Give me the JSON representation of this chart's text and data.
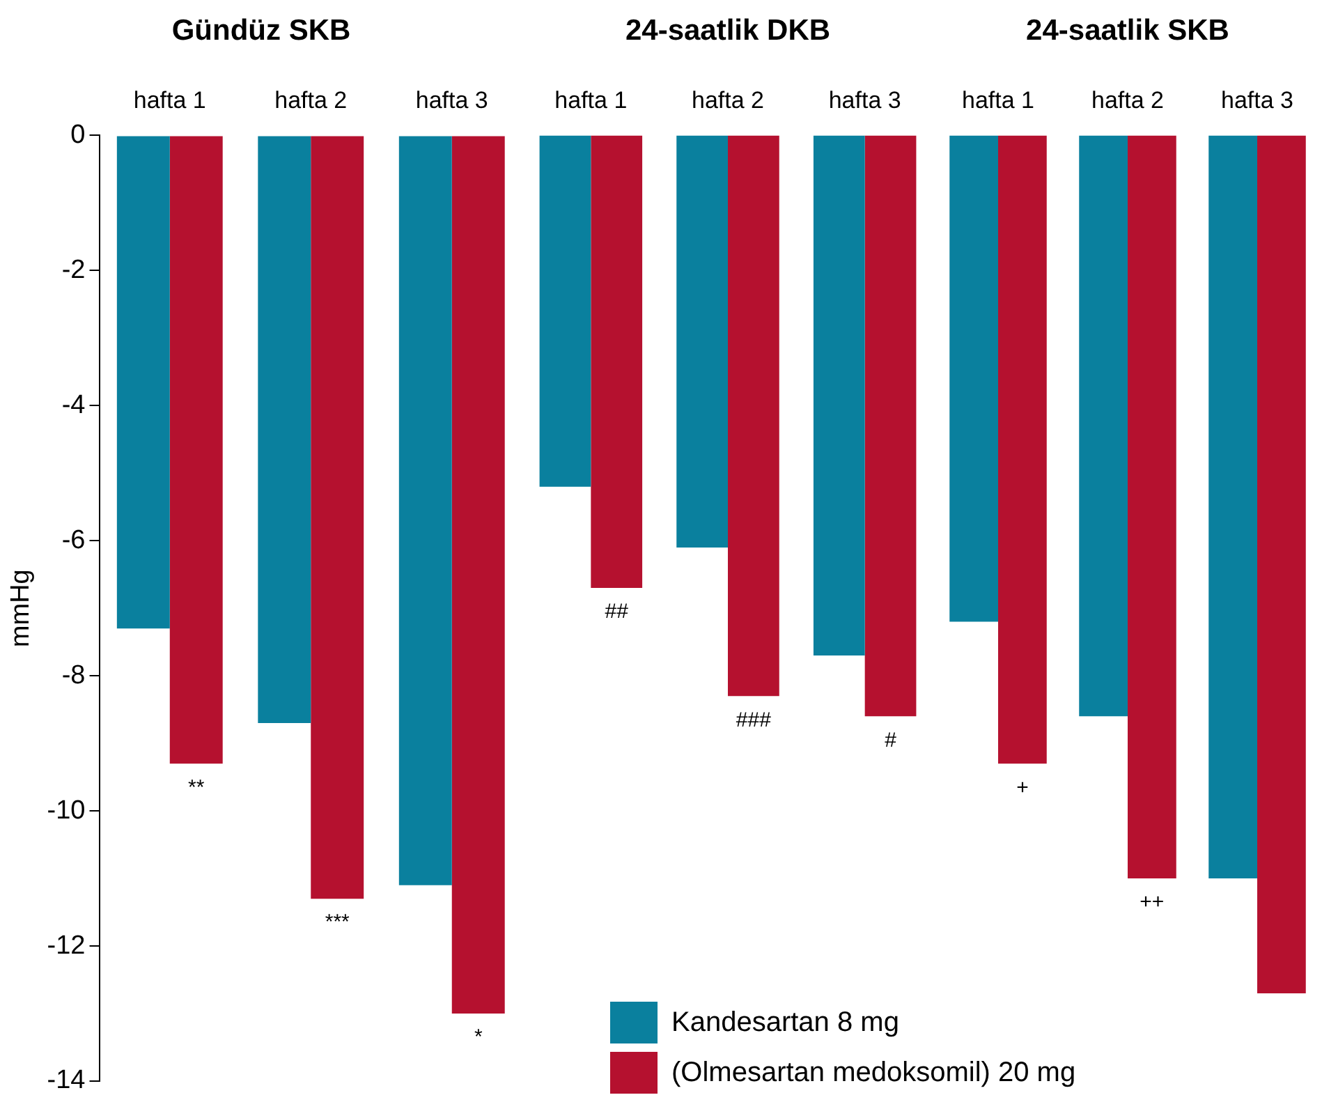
{
  "chart_data": [
    {
      "type": "bar",
      "title": "Gündüz SKB",
      "ylabel": "mmHg",
      "categories": [
        "hafta 1",
        "hafta 2",
        "hafta 3"
      ],
      "ylim": [
        -14,
        0
      ],
      "yticks": [
        0,
        -2,
        -4,
        -6,
        -8,
        -10,
        -12,
        -14
      ],
      "grid": false,
      "series": [
        {
          "color": "#0a809e",
          "values": [
            -7.3,
            -8.7,
            -11.1
          ]
        },
        {
          "color": "#b5112f",
          "values": [
            -9.3,
            -11.3,
            -13.0
          ]
        }
      ],
      "annotations": [
        {
          "text": "**",
          "x": "hafta 1",
          "y": -9.3
        },
        {
          "text": "***",
          "x": "hafta 2",
          "y": -11.3
        },
        {
          "text": "*",
          "x": "hafta 3",
          "y": -13.0
        }
      ]
    },
    {
      "type": "bar",
      "title": "24-saatlik DKB",
      "categories": [
        "hafta 1",
        "hafta 2",
        "hafta 3"
      ],
      "ylim": [
        -14,
        0
      ],
      "tick_labels": "x",
      "grid": false,
      "series": [
        {
          "color": "#0a809e",
          "values": [
            -5.2,
            -6.1,
            -7.7
          ]
        },
        {
          "color": "#b5112f",
          "values": [
            -6.7,
            -8.3,
            -8.6
          ]
        }
      ],
      "annotations": [
        {
          "text": "##",
          "x": "hafta 1",
          "y": -6.7
        },
        {
          "text": "###",
          "x": "hafta 2",
          "y": -8.3
        },
        {
          "text": "#",
          "x": "hafta 3",
          "y": -8.6
        }
      ]
    },
    {
      "type": "bar",
      "title": "24-saatlik SKB",
      "categories": [
        "hafta 1",
        "hafta 2",
        "hafta 3"
      ],
      "ylim": [
        -14,
        0
      ],
      "tick_labels": "x",
      "grid": false,
      "legend": "bottom left",
      "series": [
        {
          "name": "Kandesartan 8 mg",
          "color": "#0a809e",
          "values": [
            -7.2,
            -8.6,
            -11.0
          ]
        },
        {
          "name": "(Olmesartan medoksomil) 20 mg",
          "color": "#b5112f",
          "values": [
            -9.3,
            -11.0,
            -12.7
          ]
        }
      ],
      "annotations": [
        {
          "text": "+",
          "x": "hafta 1",
          "y": -9.3
        },
        {
          "text": "++",
          "x": "hafta 2",
          "y": -11.0
        }
      ]
    }
  ]
}
